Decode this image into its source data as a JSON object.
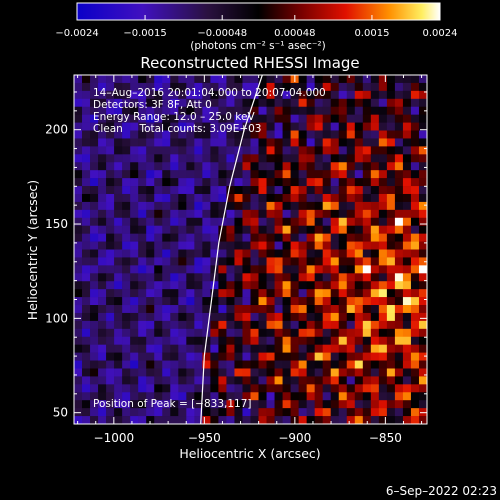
{
  "chart_data": {
    "type": "heatmap",
    "title": "Reconstructed RHESSI Image",
    "xlabel": "Heliocentric X (arcsec)",
    "ylabel": "Heliocentric Y (arcsec)",
    "xlim": [
      -1022,
      -827
    ],
    "ylim": [
      44,
      229
    ],
    "x_ticks": [
      -1000,
      -950,
      -900,
      -850
    ],
    "x_tick_labels": [
      "−1000",
      "−950",
      "−900",
      "−850"
    ],
    "y_ticks": [
      50,
      100,
      150,
      200
    ],
    "y_tick_labels": [
      "50",
      "100",
      "150",
      "200"
    ],
    "colorbar": {
      "range": [
        -0.0024,
        0.0024
      ],
      "ticks": [
        -0.0024,
        -0.0015,
        -0.00048,
        0.00048,
        0.0015,
        0.0024
      ],
      "tick_labels": [
        "−0.0024",
        "−0.0015",
        "−0.00048",
        "0.00048",
        "0.0015",
        "0.0024"
      ],
      "unit_label": "(photons cm⁻² s⁻¹ asec⁻²)",
      "colormap": "blue-purple-black-red-orange-yellow-white"
    },
    "annotations": [
      "14–Aug–2016 20:01:04.000 to 20:07:04.000",
      "Detectors: 3F 8F, Att 0",
      "Energy Range: 12.0 – 25.0 keV",
      "Clean     Total counts: 3.09E+03"
    ],
    "peak_label": "Position of Peak = [−833,117]",
    "peak_position": [
      -833,
      117
    ],
    "limb_curve": [
      [
        -918,
        229
      ],
      [
        -928,
        200
      ],
      [
        -936,
        170
      ],
      [
        -942,
        140
      ],
      [
        -946,
        110
      ],
      [
        -950,
        80
      ],
      [
        -952,
        44
      ]
    ]
  },
  "footer_date": "6–Sep–2022 02:23"
}
